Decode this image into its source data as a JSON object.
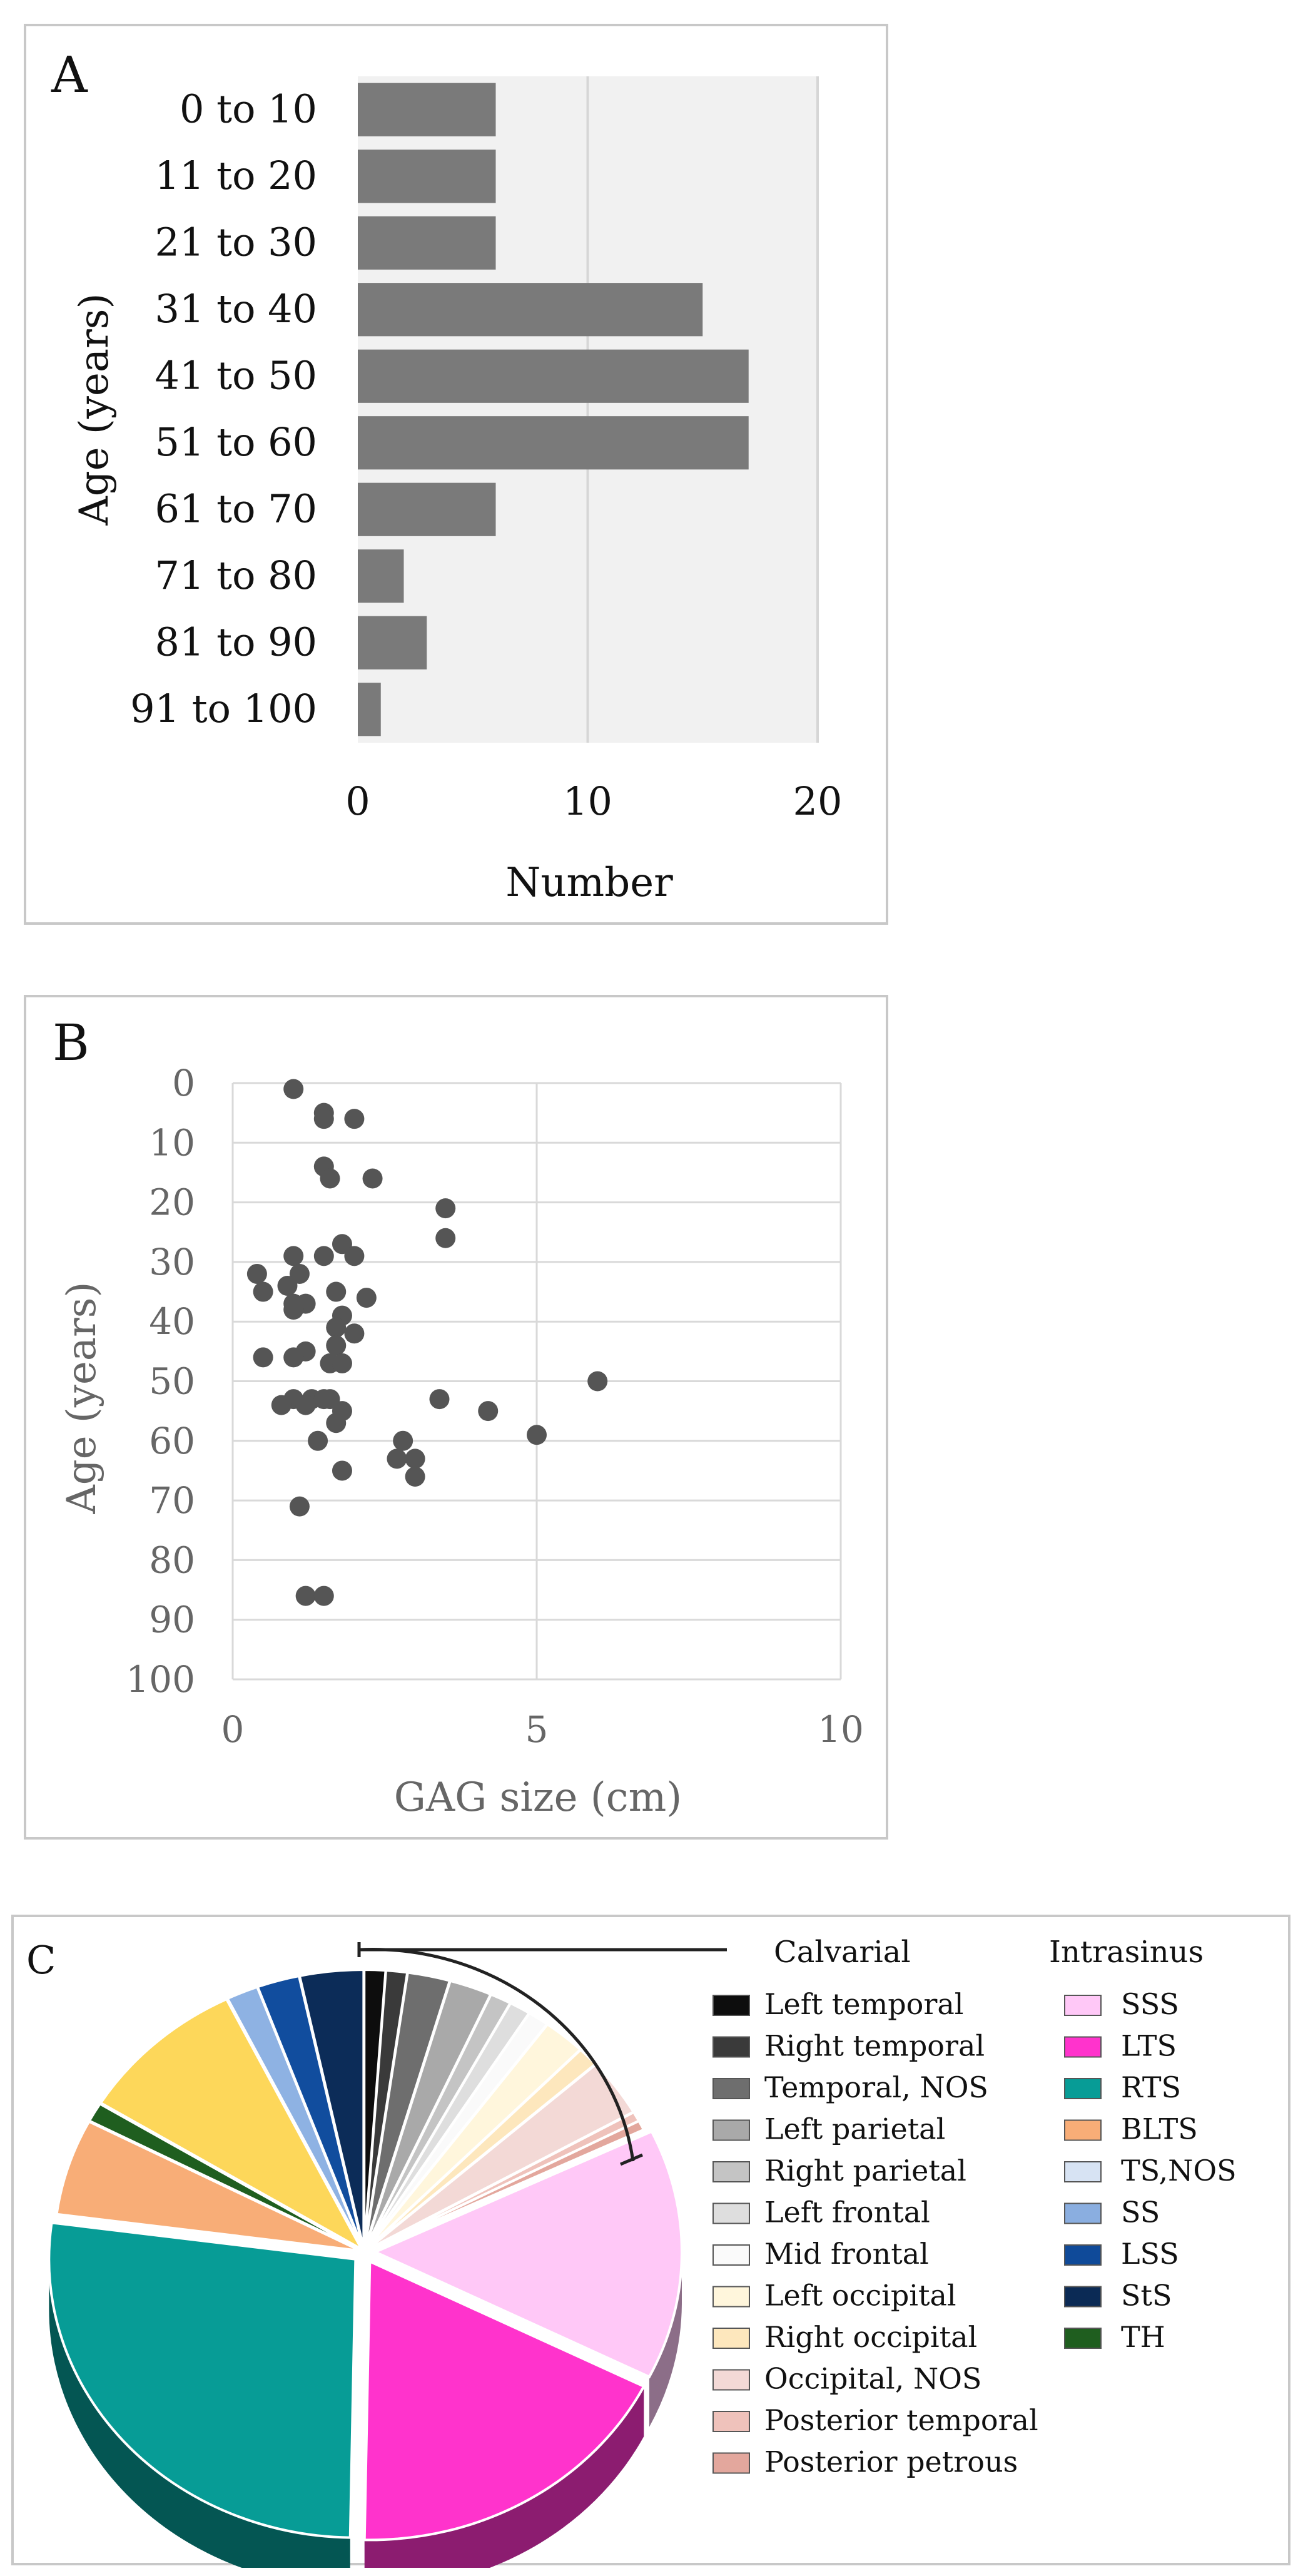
{
  "panelA": {
    "letter": "A",
    "chart_data": {
      "type": "bar",
      "orientation": "horizontal",
      "categories": [
        "0 to 10",
        "11 to 20",
        "21 to 30",
        "31 to 40",
        "41 to 50",
        "51 to 60",
        "61 to 70",
        "71 to 80",
        "81 to 90",
        "91 to 100"
      ],
      "values": [
        6,
        6,
        6,
        15,
        17,
        17,
        6,
        2,
        3,
        1
      ],
      "xlabel": "Number",
      "ylabel": "Age (years)",
      "xlim": [
        0,
        20
      ],
      "xticks": [
        "0",
        "10",
        "20"
      ],
      "bar_color": "#7a7a7a"
    }
  },
  "panelB": {
    "letter": "B",
    "chart_data": {
      "type": "scatter",
      "xlabel": "GAG size (cm)",
      "ylabel": "Age (years)",
      "xlim": [
        0,
        10
      ],
      "ylim": [
        0,
        100
      ],
      "y_inverted": true,
      "xticks": [
        "0",
        "5",
        "10"
      ],
      "yticks": [
        "0",
        "10",
        "20",
        "30",
        "40",
        "50",
        "60",
        "70",
        "80",
        "90",
        "100"
      ],
      "points": [
        [
          1.0,
          1
        ],
        [
          1.5,
          5
        ],
        [
          1.5,
          6
        ],
        [
          2.0,
          6
        ],
        [
          1.5,
          14
        ],
        [
          1.6,
          16
        ],
        [
          2.3,
          16
        ],
        [
          3.5,
          21
        ],
        [
          3.5,
          26
        ],
        [
          1.8,
          27
        ],
        [
          2.0,
          29
        ],
        [
          1.0,
          29
        ],
        [
          1.5,
          29
        ],
        [
          0.4,
          32
        ],
        [
          1.1,
          32
        ],
        [
          0.9,
          34
        ],
        [
          0.5,
          35
        ],
        [
          1.7,
          35
        ],
        [
          2.2,
          36
        ],
        [
          1.0,
          37
        ],
        [
          1.2,
          37
        ],
        [
          1.0,
          38
        ],
        [
          1.8,
          39
        ],
        [
          1.7,
          41
        ],
        [
          2.0,
          42
        ],
        [
          1.7,
          44
        ],
        [
          1.2,
          45
        ],
        [
          0.5,
          46
        ],
        [
          1.0,
          46
        ],
        [
          1.6,
          47
        ],
        [
          1.8,
          47
        ],
        [
          6.0,
          50
        ],
        [
          1.0,
          53
        ],
        [
          1.3,
          53
        ],
        [
          1.5,
          53
        ],
        [
          1.6,
          53
        ],
        [
          3.4,
          53
        ],
        [
          1.2,
          54
        ],
        [
          0.8,
          54
        ],
        [
          1.8,
          55
        ],
        [
          4.2,
          55
        ],
        [
          1.7,
          57
        ],
        [
          5.0,
          59
        ],
        [
          2.8,
          60
        ],
        [
          1.4,
          60
        ],
        [
          2.7,
          63
        ],
        [
          3.0,
          63
        ],
        [
          1.8,
          65
        ],
        [
          3.0,
          66
        ],
        [
          1.1,
          71
        ],
        [
          1.2,
          86
        ],
        [
          1.5,
          86
        ]
      ],
      "marker_color": "#555555"
    }
  },
  "panelC": {
    "letter": "C",
    "chart_data": {
      "type": "pie",
      "style": "3d-exploded",
      "groups": [
        "Calvarial",
        "Intrasinus"
      ],
      "slices": [
        {
          "label": "Left temporal",
          "group": "Calvarial",
          "value": 1,
          "color": "#0d0d0d"
        },
        {
          "label": "Right temporal",
          "group": "Calvarial",
          "value": 1,
          "color": "#3a3a3a"
        },
        {
          "label": "Temporal, NOS",
          "group": "Calvarial",
          "value": 2,
          "color": "#6e6e6e"
        },
        {
          "label": "Left parietal",
          "group": "Calvarial",
          "value": 2,
          "color": "#a9a9a9"
        },
        {
          "label": "Right parietal",
          "group": "Calvarial",
          "value": 1,
          "color": "#c4c4c4"
        },
        {
          "label": "Left frontal",
          "group": "Calvarial",
          "value": 1,
          "color": "#dedede"
        },
        {
          "label": "Mid frontal",
          "group": "Calvarial",
          "value": 1,
          "color": "#fafafa"
        },
        {
          "label": "Left occipital",
          "group": "Calvarial",
          "value": 2,
          "color": "#fff6dc"
        },
        {
          "label": "Right occipital",
          "group": "Calvarial",
          "value": 1,
          "color": "#fde7bd"
        },
        {
          "label": "Occipital, NOS",
          "group": "Calvarial",
          "value": 3,
          "color": "#f3d9d6"
        },
        {
          "label": "Posterior temporal",
          "group": "Calvarial",
          "value": 0.5,
          "color": "#efc2bb"
        },
        {
          "label": "Posterior petrous",
          "group": "Calvarial",
          "value": 0.5,
          "color": "#e3a79d"
        },
        {
          "label": "SSS",
          "group": "Intrasinus",
          "value": 13,
          "color": "#ffc8f7"
        },
        {
          "label": "LTS",
          "group": "Intrasinus",
          "value": 16,
          "color": "#ff33cc"
        },
        {
          "label": "RTS",
          "group": "Intrasinus",
          "value": 24,
          "color": "#079c96"
        },
        {
          "label": "BLTS",
          "group": "Intrasinus",
          "value": 5,
          "color": "#f8ad77"
        },
        {
          "label": "TS,NOS",
          "group": "Intrasinus",
          "value": 0,
          "color": "#d7e3f3"
        },
        {
          "label": "SS",
          "group": "Intrasinus",
          "value": 0,
          "color": "#8aaee0"
        },
        {
          "label": "LSS",
          "group": "Intrasinus",
          "value": 0,
          "color": "#0f4a99"
        },
        {
          "label": "StS",
          "group": "Intrasinus",
          "value": 0,
          "color": "#0b2a55"
        },
        {
          "label": "TH",
          "group": "Intrasinus",
          "value": 1,
          "color": "#1f5e1f"
        },
        {
          "label": "",
          "group": "Intrasinus",
          "value": 8,
          "color": "#fdd75a"
        },
        {
          "label": "",
          "group": "Intrasinus",
          "value": 1.5,
          "color": "#8eb2e3"
        },
        {
          "label": "",
          "group": "Intrasinus",
          "value": 2,
          "color": "#114d9e"
        },
        {
          "label": "",
          "group": "Intrasinus",
          "value": 3,
          "color": "#0c2c58"
        }
      ]
    }
  }
}
